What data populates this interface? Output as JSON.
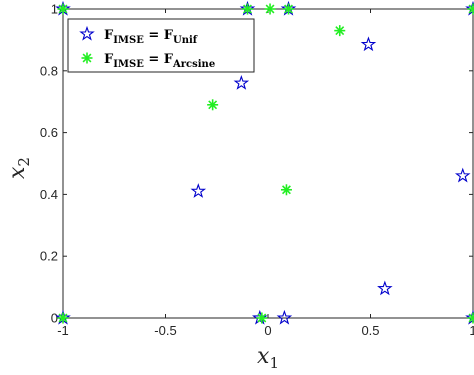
{
  "chart_data": {
    "type": "scatter",
    "xlabel": "x",
    "xlabel_sub": "1",
    "ylabel": "x",
    "ylabel_sub": "2",
    "xlim": [
      -1,
      1
    ],
    "ylim": [
      0,
      1
    ],
    "xticks": [
      -1,
      -0.5,
      0,
      0.5,
      1
    ],
    "xtick_labels": [
      "-1",
      "-0.5",
      "0",
      "0.5",
      "1"
    ],
    "yticks": [
      0,
      0.2,
      0.4,
      0.6,
      0.8,
      1
    ],
    "ytick_labels": [
      "0",
      "0.2",
      "0.4",
      "0.6",
      "0.8",
      "1"
    ],
    "grid": false,
    "legend_position": "top-left",
    "series": [
      {
        "name_main": "F",
        "name_sub_left": "IMSE",
        "name_eq": " = F",
        "name_sub_right": "Unif",
        "marker": "pentagram",
        "color": "#0000CC",
        "points": [
          [
            -1,
            1
          ],
          [
            -0.1,
            1
          ],
          [
            0.1,
            1
          ],
          [
            1,
            1
          ],
          [
            0.49,
            0.885
          ],
          [
            -0.13,
            0.76
          ],
          [
            -0.34,
            0.41
          ],
          [
            0.95,
            0.46
          ],
          [
            0.57,
            0.095
          ],
          [
            -1,
            0
          ],
          [
            -0.04,
            0
          ],
          [
            0.08,
            0
          ],
          [
            1,
            0
          ]
        ]
      },
      {
        "name_main": "F",
        "name_sub_left": "IMSE",
        "name_eq": " = F",
        "name_sub_right": "Arcsine",
        "marker": "asterisk",
        "color": "#22EE22",
        "points": [
          [
            -1,
            1
          ],
          [
            -0.1,
            1
          ],
          [
            0.01,
            1
          ],
          [
            0.1,
            1
          ],
          [
            1,
            1
          ],
          [
            0.35,
            0.93
          ],
          [
            -0.27,
            0.69
          ],
          [
            0.09,
            0.415
          ],
          [
            -1,
            0
          ],
          [
            -0.03,
            0
          ],
          [
            1,
            0
          ]
        ]
      }
    ]
  }
}
